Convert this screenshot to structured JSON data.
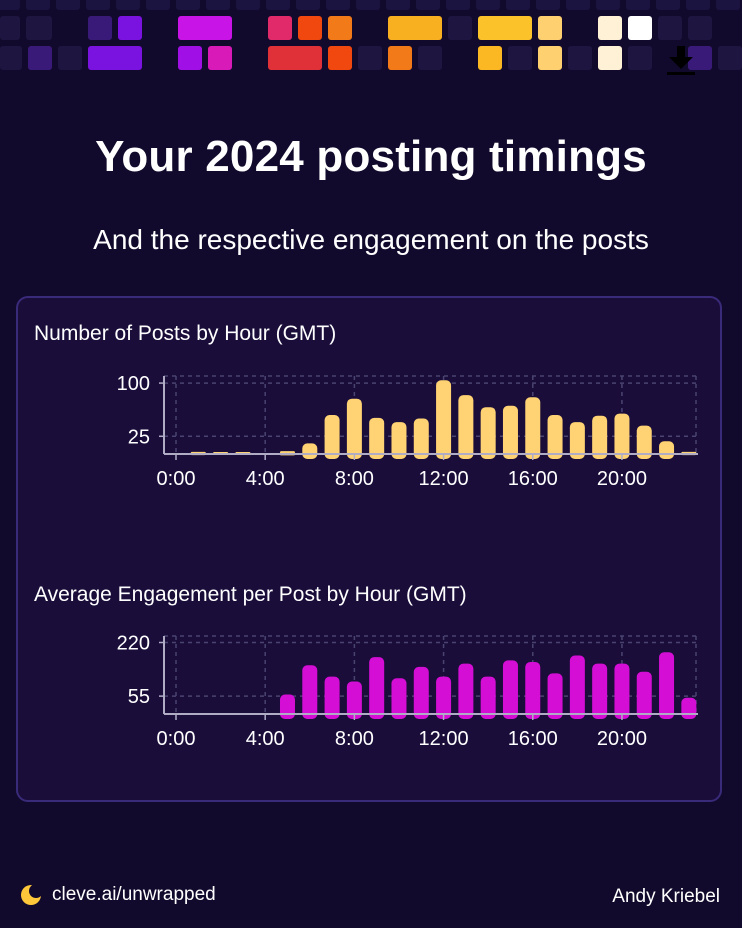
{
  "header": {
    "title": "Your 2024 posting timings",
    "subtitle": "And the respective engagement on the posts"
  },
  "icons": {
    "download": "download-icon",
    "logo": "moon-logo-icon"
  },
  "colors": {
    "background": "#120a2c",
    "card": "#1a0d3a",
    "card_border": "#3a2a7a",
    "posts_bar": "#ffd373",
    "engagement_bar": "#d40ed4",
    "axis": "#b0acc6",
    "grid": "#4a4470"
  },
  "chart_data": [
    {
      "type": "bar",
      "title": "Number of Posts by Hour (GMT)",
      "x": [
        0,
        1,
        2,
        3,
        4,
        5,
        6,
        7,
        8,
        9,
        10,
        11,
        12,
        13,
        14,
        15,
        16,
        17,
        18,
        19,
        20,
        21,
        22,
        23
      ],
      "values": [
        0,
        3,
        1,
        1,
        0,
        4,
        15,
        55,
        78,
        51,
        45,
        50,
        104,
        83,
        66,
        68,
        80,
        55,
        45,
        54,
        57,
        40,
        18,
        3
      ],
      "yticks": [
        25,
        100
      ],
      "ylim": [
        0,
        110
      ],
      "xticks": [
        "0:00",
        "4:00",
        "8:00",
        "12:00",
        "16:00",
        "20:00"
      ],
      "xtick_hours": [
        0,
        4,
        8,
        12,
        16,
        20
      ],
      "grid": true
    },
    {
      "type": "bar",
      "title": "Average Engagement per Post by Hour (GMT)",
      "x": [
        0,
        1,
        2,
        3,
        4,
        5,
        6,
        7,
        8,
        9,
        10,
        11,
        12,
        13,
        14,
        15,
        16,
        17,
        18,
        19,
        20,
        21,
        22,
        23
      ],
      "values": [
        0,
        0,
        0,
        0,
        0,
        60,
        150,
        115,
        100,
        175,
        110,
        145,
        115,
        155,
        115,
        165,
        160,
        125,
        180,
        155,
        155,
        130,
        190,
        50
      ],
      "yticks": [
        55,
        220
      ],
      "ylim": [
        0,
        240
      ],
      "xticks": [
        "0:00",
        "4:00",
        "8:00",
        "12:00",
        "16:00",
        "20:00"
      ],
      "xtick_hours": [
        0,
        4,
        8,
        12,
        16,
        20
      ],
      "grid": true
    }
  ],
  "footer": {
    "link": "cleve.ai/unwrapped",
    "author": "Andy Kriebel"
  }
}
